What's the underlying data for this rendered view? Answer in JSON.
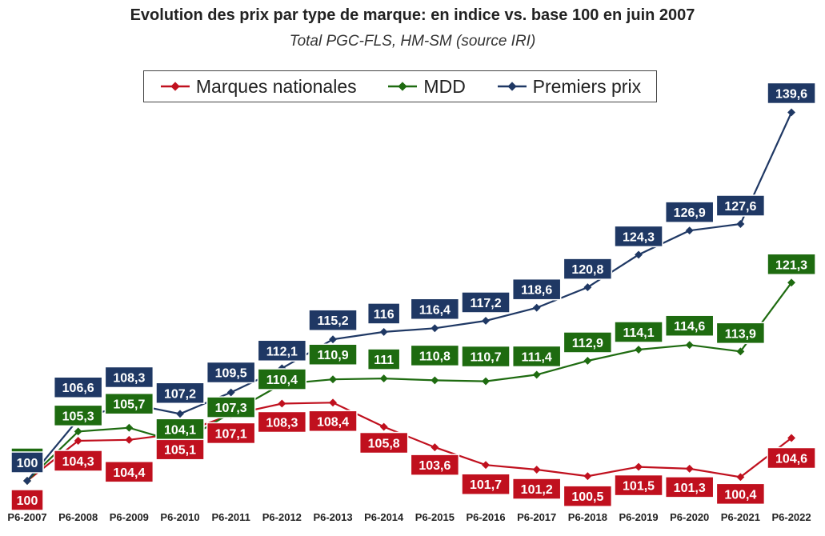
{
  "chart_data": {
    "type": "line",
    "title": "Evolution des prix par type de marque: en indice vs. base 100 en juin 2007",
    "subtitle": "Total PGC-FLS, HM-SM (source IRI)",
    "categories": [
      "P6-2007",
      "P6-2008",
      "P6-2009",
      "P6-2010",
      "P6-2011",
      "P6-2012",
      "P6-2013",
      "P6-2014",
      "P6-2015",
      "P6-2016",
      "P6-2017",
      "P6-2018",
      "P6-2019",
      "P6-2020",
      "P6-2021",
      "P6-2022"
    ],
    "series": [
      {
        "name": "Marques nationales",
        "color": "#c0101e",
        "values": [
          100,
          104.3,
          104.4,
          105.1,
          107.1,
          108.3,
          108.4,
          105.8,
          103.6,
          101.7,
          101.2,
          100.5,
          101.5,
          101.3,
          100.4,
          104.6
        ],
        "labels": [
          "100",
          "104,3",
          "104,4",
          "105,1",
          "107,1",
          "108,3",
          "108,4",
          "105,8",
          "103,6",
          "101,7",
          "101,2",
          "100,5",
          "101,5",
          "101,3",
          "100,4",
          "104,6"
        ]
      },
      {
        "name": "MDD",
        "color": "#1e6b10",
        "values": [
          100,
          105.3,
          105.7,
          104.1,
          107.3,
          110.4,
          110.9,
          111,
          110.8,
          110.7,
          111.4,
          112.9,
          114.1,
          114.6,
          113.9,
          121.3
        ],
        "labels": [
          "100",
          "105,3",
          "105,7",
          "104,1",
          "107,3",
          "110,4",
          "110,9",
          "111",
          "110,8",
          "110,7",
          "111,4",
          "112,9",
          "114,1",
          "114,6",
          "113,9",
          "121,3"
        ]
      },
      {
        "name": "Premiers prix",
        "color": "#1f3864",
        "values": [
          100,
          106.6,
          108.3,
          107.2,
          109.5,
          112.1,
          115.2,
          116,
          116.4,
          117.2,
          118.6,
          120.8,
          124.3,
          126.9,
          127.6,
          139.6
        ],
        "labels": [
          "100",
          "106,6",
          "108,3",
          "107,2",
          "109,5",
          "112,1",
          "115,2",
          "116",
          "116,4",
          "117,2",
          "118,6",
          "120,8",
          "124,3",
          "126,9",
          "127,6",
          "139,6"
        ]
      }
    ],
    "legend_position": "top",
    "grid": false,
    "ylim": [
      99,
      141
    ]
  }
}
